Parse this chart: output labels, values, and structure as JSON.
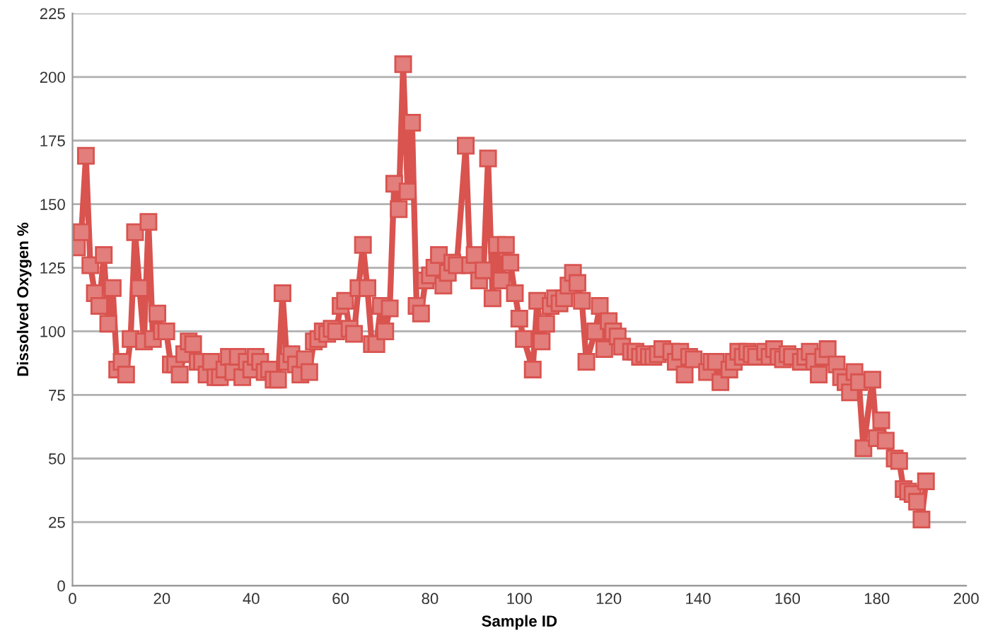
{
  "chart_data": {
    "type": "line",
    "xlabel": "Sample ID",
    "ylabel": "Dissolved Oxygen %",
    "xlim": [
      0,
      200
    ],
    "xticks": [
      0,
      20,
      40,
      60,
      80,
      100,
      120,
      140,
      160,
      180,
      200
    ],
    "ylim": [
      0,
      225
    ],
    "yticks": [
      0,
      25,
      50,
      75,
      100,
      125,
      150,
      175,
      200,
      225
    ],
    "grid": "y",
    "marker": "square",
    "line_style": "solid",
    "series": [
      {
        "color": "#d9534f",
        "x": [
          1,
          2,
          3,
          4,
          5,
          6,
          7,
          8,
          9,
          10,
          11,
          12,
          13,
          14,
          15,
          16,
          17,
          18,
          19,
          20,
          21,
          22,
          23,
          24,
          25,
          26,
          27,
          28,
          29,
          30,
          31,
          32,
          33,
          34,
          35,
          36,
          37,
          38,
          39,
          40,
          41,
          42,
          43,
          44,
          45,
          46,
          47,
          48,
          49,
          50,
          51,
          52,
          53,
          54,
          55,
          56,
          57,
          58,
          59,
          60,
          61,
          62,
          63,
          64,
          65,
          66,
          67,
          68,
          69,
          70,
          71,
          72,
          73,
          74,
          75,
          76,
          77,
          78,
          79,
          80,
          81,
          82,
          83,
          84,
          85,
          86,
          88,
          89,
          90,
          91,
          92,
          93,
          94,
          95,
          96,
          97,
          98,
          99,
          100,
          101,
          103,
          104,
          105,
          106,
          107,
          108,
          109,
          110,
          111,
          112,
          113,
          114,
          115,
          117,
          118,
          119,
          120,
          121,
          122,
          123,
          125,
          126,
          127,
          128,
          129,
          130,
          131,
          132,
          134,
          135,
          136,
          137,
          138,
          139,
          142,
          143,
          144,
          145,
          147,
          148,
          149,
          150,
          151,
          152,
          153,
          155,
          156,
          157,
          158,
          159,
          160,
          161,
          163,
          164,
          165,
          166,
          167,
          168,
          169,
          171,
          172,
          173,
          174,
          175,
          176,
          177,
          179,
          180,
          181,
          182,
          184,
          185,
          186,
          187,
          188,
          189,
          190,
          191
        ],
        "values": [
          133,
          139,
          169,
          126,
          115,
          110,
          130,
          103,
          117,
          85,
          88,
          83,
          97,
          139,
          117,
          96,
          143,
          97,
          107,
          100,
          100,
          87,
          87,
          83,
          91,
          96,
          95,
          88,
          88,
          83,
          88,
          82,
          82,
          85,
          90,
          84,
          90,
          82,
          88,
          85,
          90,
          88,
          84,
          85,
          81,
          81,
          115,
          88,
          91,
          87,
          83,
          89,
          84,
          96,
          97,
          100,
          99,
          101,
          100,
          110,
          112,
          101,
          99,
          117,
          134,
          117,
          95,
          95,
          110,
          100,
          109,
          158,
          148,
          205,
          155,
          182,
          110,
          107,
          120,
          122,
          125,
          130,
          118,
          123,
          127,
          126,
          173,
          126,
          130,
          120,
          124,
          168,
          113,
          134,
          120,
          134,
          127,
          115,
          105,
          97,
          85,
          112,
          96,
          103,
          110,
          113,
          111,
          113,
          118,
          123,
          119,
          112,
          88,
          100,
          110,
          93,
          104,
          100,
          98,
          94,
          92,
          92,
          90,
          91,
          90,
          90,
          91,
          93,
          92,
          88,
          92,
          83,
          90,
          89,
          84,
          88,
          88,
          80,
          85,
          88,
          92,
          90,
          92,
          91,
          90,
          92,
          90,
          93,
          90,
          89,
          91,
          90,
          88,
          90,
          92,
          88,
          83,
          90,
          93,
          87,
          82,
          80,
          76,
          84,
          80,
          54,
          81,
          58,
          65,
          57,
          50,
          49,
          38,
          37,
          36,
          33,
          26,
          41
        ]
      }
    ]
  }
}
